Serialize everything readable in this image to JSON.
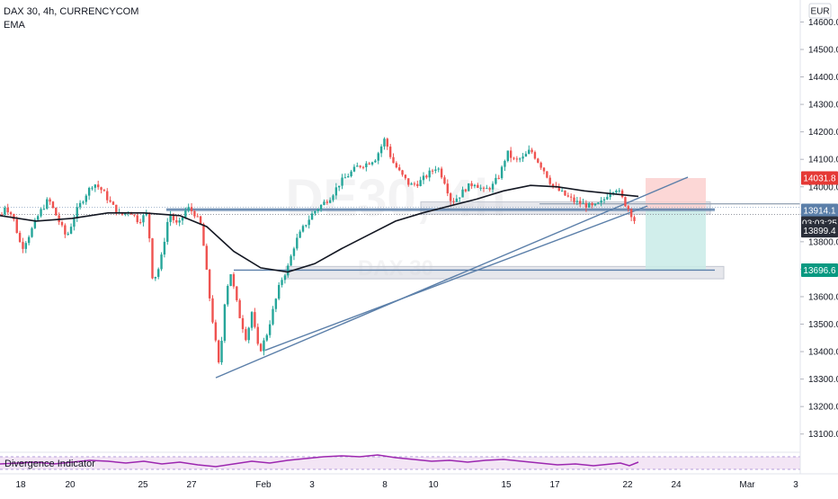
{
  "header": {
    "symbol_line": "DAX 30, 4h, CURRENCYCOM",
    "indicator": "EMA",
    "currency": "EUR"
  },
  "watermark": {
    "big": "DE30, 4h",
    "small": "DAX 30"
  },
  "indicator_pane": {
    "label": "Divergence Indicator"
  },
  "colors": {
    "up": "#26a69a",
    "down": "#ef5350",
    "ema": "#131722",
    "trendline": "#5b7fa9",
    "stop_zone": "#fbd0cf",
    "target_zone": "#c9ebe7",
    "price_label_bg": "#2a2e39",
    "marker_red": "#e53935",
    "marker_green": "#089981",
    "rsi_line": "#9c27b0",
    "rsi_band": "#f3e5f5"
  },
  "chart_data": {
    "type": "candlestick",
    "title": "DAX 30, 4h, CURRENCYCOM",
    "y_range": [
      13050,
      14680
    ],
    "x_range": [
      0,
      890
    ],
    "y_ticks": [
      "14600.0",
      "14500.0",
      "14400.0",
      "14300.0",
      "14200.0",
      "14100.0",
      "14000.0",
      "13900.0",
      "13800.0",
      "13700.0",
      "13600.0",
      "13500.0",
      "13400.0",
      "13300.0",
      "13200.0",
      "13100.0"
    ],
    "x_ticks": [
      {
        "label": "18",
        "x": 23
      },
      {
        "label": "20",
        "x": 78
      },
      {
        "label": "25",
        "x": 159
      },
      {
        "label": "27",
        "x": 213
      },
      {
        "label": "Feb",
        "x": 293
      },
      {
        "label": "3",
        "x": 347
      },
      {
        "label": "8",
        "x": 428
      },
      {
        "label": "10",
        "x": 482
      },
      {
        "label": "15",
        "x": 563
      },
      {
        "label": "17",
        "x": 617
      },
      {
        "label": "22",
        "x": 698
      },
      {
        "label": "24",
        "x": 752
      },
      {
        "label": "Mar",
        "x": 831
      },
      {
        "label": "3",
        "x": 885
      }
    ],
    "candle_anchors": [
      [
        4,
        13935
      ],
      [
        14,
        13895
      ],
      [
        24,
        13775
      ],
      [
        34,
        13835
      ],
      [
        44,
        13905
      ],
      [
        54,
        13955
      ],
      [
        64,
        13885
      ],
      [
        74,
        13815
      ],
      [
        84,
        13905
      ],
      [
        94,
        13965
      ],
      [
        104,
        14015
      ],
      [
        114,
        13985
      ],
      [
        124,
        13935
      ],
      [
        134,
        13895
      ],
      [
        144,
        13915
      ],
      [
        154,
        13875
      ],
      [
        164,
        13905
      ],
      [
        170,
        13655
      ],
      [
        178,
        13715
      ],
      [
        188,
        13905
      ],
      [
        198,
        13855
      ],
      [
        208,
        13925
      ],
      [
        216,
        13905
      ],
      [
        224,
        13855
      ],
      [
        232,
        13625
      ],
      [
        238,
        13475
      ],
      [
        244,
        13335
      ],
      [
        250,
        13585
      ],
      [
        256,
        13695
      ],
      [
        266,
        13535
      ],
      [
        274,
        13445
      ],
      [
        280,
        13545
      ],
      [
        288,
        13395
      ],
      [
        296,
        13455
      ],
      [
        304,
        13555
      ],
      [
        312,
        13655
      ],
      [
        320,
        13705
      ],
      [
        328,
        13795
      ],
      [
        338,
        13855
      ],
      [
        348,
        13905
      ],
      [
        358,
        13935
      ],
      [
        368,
        13965
      ],
      [
        378,
        14015
      ],
      [
        388,
        14045
      ],
      [
        398,
        14075
      ],
      [
        408,
        14085
      ],
      [
        418,
        14105
      ],
      [
        428,
        14175
      ],
      [
        436,
        14095
      ],
      [
        446,
        14045
      ],
      [
        456,
        14005
      ],
      [
        466,
        14015
      ],
      [
        476,
        14045
      ],
      [
        486,
        14075
      ],
      [
        494,
        14025
      ],
      [
        502,
        13945
      ],
      [
        510,
        13965
      ],
      [
        518,
        13995
      ],
      [
        528,
        14015
      ],
      [
        538,
        13985
      ],
      [
        548,
        14005
      ],
      [
        556,
        14045
      ],
      [
        564,
        14125
      ],
      [
        572,
        14095
      ],
      [
        582,
        14105
      ],
      [
        590,
        14135
      ],
      [
        598,
        14095
      ],
      [
        606,
        14055
      ],
      [
        614,
        14005
      ],
      [
        622,
        13985
      ],
      [
        630,
        13965
      ],
      [
        640,
        13945
      ],
      [
        650,
        13935
      ],
      [
        660,
        13925
      ],
      [
        670,
        13945
      ],
      [
        678,
        13985
      ],
      [
        686,
        13995
      ],
      [
        694,
        13945
      ],
      [
        700,
        13915
      ],
      [
        706,
        13875
      ],
      [
        710,
        13899
      ]
    ],
    "ema_anchors": [
      [
        0,
        13895
      ],
      [
        40,
        13875
      ],
      [
        80,
        13885
      ],
      [
        120,
        13905
      ],
      [
        160,
        13905
      ],
      [
        200,
        13895
      ],
      [
        230,
        13855
      ],
      [
        260,
        13765
      ],
      [
        290,
        13705
      ],
      [
        320,
        13690
      ],
      [
        350,
        13720
      ],
      [
        380,
        13775
      ],
      [
        410,
        13825
      ],
      [
        440,
        13875
      ],
      [
        470,
        13905
      ],
      [
        500,
        13930
      ],
      [
        530,
        13955
      ],
      [
        560,
        13985
      ],
      [
        590,
        14005
      ],
      [
        620,
        14000
      ],
      [
        650,
        13985
      ],
      [
        680,
        13975
      ],
      [
        710,
        13965
      ]
    ],
    "horizontal_levels": [
      {
        "price": 13919,
        "x1": 185,
        "x2": 795,
        "color": "#5b7fa9"
      },
      {
        "price": 13914,
        "x1": 185,
        "x2": 795,
        "color": "#5b7fa9"
      },
      {
        "price": 13938,
        "x1": 600,
        "x2": 890,
        "color": "#9aa7b8"
      },
      {
        "price": 13696.6,
        "x1": 260,
        "x2": 795,
        "color": "#5b7fa9"
      }
    ],
    "shaded_bands": [
      {
        "y_top": 13945,
        "y_bottom": 13900,
        "x1": 468,
        "x2": 790,
        "color": "#d1d4dc"
      },
      {
        "y_top": 13710,
        "y_bottom": 13665,
        "x1": 318,
        "x2": 805,
        "color": "#d1d4dc"
      }
    ],
    "trendlines": [
      {
        "x1": 240,
        "y1": 13305,
        "x2": 765,
        "y2": 14035
      },
      {
        "x1": 295,
        "y1": 13405,
        "x2": 720,
        "y2": 13930
      }
    ],
    "position_zones": [
      {
        "kind": "stop",
        "x1": 718,
        "x2": 785,
        "y_top": 14031.8,
        "y_bottom": 13914.1
      },
      {
        "kind": "target",
        "x1": 718,
        "x2": 785,
        "y_top": 13914.1,
        "y_bottom": 13696.6
      }
    ],
    "price_labels": [
      {
        "text": "14031.8",
        "price": 14031.8,
        "bg": "#e53935"
      },
      {
        "text": "13914.1",
        "price": 13914.1,
        "bg": "#5b7fa9"
      },
      {
        "text": "03:03:25",
        "price": 13868,
        "bg": "#2a2e39"
      },
      {
        "text": "13899.4",
        "price": 13840,
        "bg": "#2a2e39"
      },
      {
        "text": "13696.6",
        "price": 13696.6,
        "bg": "#089981"
      }
    ],
    "rsi_pts": [
      [
        0,
        516
      ],
      [
        20,
        515
      ],
      [
        40,
        514
      ],
      [
        60,
        516
      ],
      [
        80,
        514
      ],
      [
        100,
        512
      ],
      [
        120,
        513
      ],
      [
        140,
        515
      ],
      [
        160,
        513
      ],
      [
        180,
        516
      ],
      [
        200,
        514
      ],
      [
        220,
        517
      ],
      [
        240,
        519
      ],
      [
        260,
        516
      ],
      [
        280,
        513
      ],
      [
        300,
        515
      ],
      [
        320,
        512
      ],
      [
        340,
        510
      ],
      [
        360,
        508
      ],
      [
        380,
        507
      ],
      [
        400,
        508
      ],
      [
        420,
        506
      ],
      [
        440,
        509
      ],
      [
        460,
        511
      ],
      [
        480,
        513
      ],
      [
        500,
        512
      ],
      [
        520,
        514
      ],
      [
        540,
        512
      ],
      [
        560,
        511
      ],
      [
        580,
        513
      ],
      [
        600,
        515
      ],
      [
        620,
        517
      ],
      [
        640,
        516
      ],
      [
        660,
        518
      ],
      [
        680,
        516
      ],
      [
        690,
        515
      ],
      [
        700,
        518
      ],
      [
        710,
        514
      ]
    ]
  }
}
